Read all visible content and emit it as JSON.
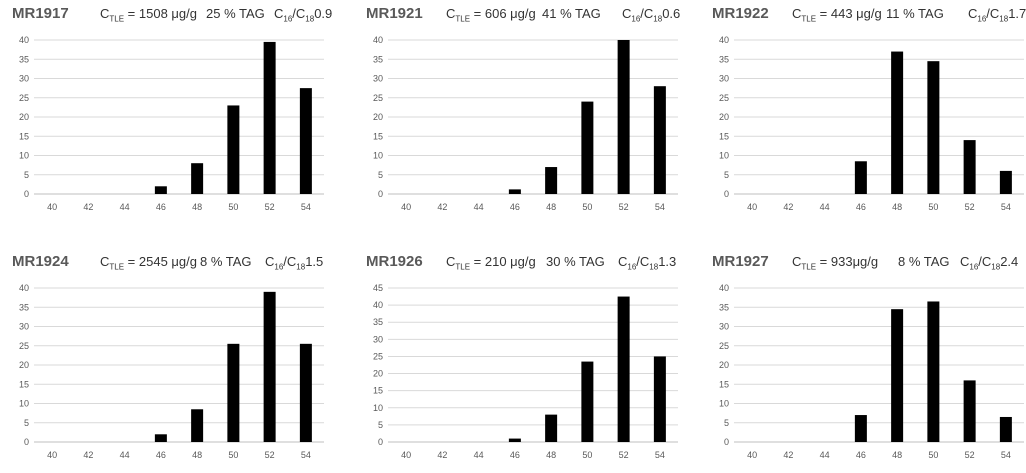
{
  "chart_data": [
    {
      "type": "bar",
      "title": {
        "sample": "MR1917",
        "ctle_prefix": "C",
        "ctle_sub": "TLE",
        "ctle_value": " = 1508 μg/g",
        "tag": "25 % TAG",
        "ratio_c1": "C",
        "ratio_s1": "16",
        "ratio_c2": "/C",
        "ratio_s2": "18",
        "ratio_value": "0.9"
      },
      "categories": [
        "40",
        "42",
        "44",
        "46",
        "48",
        "50",
        "52",
        "54"
      ],
      "values": [
        0,
        0,
        0,
        2,
        8,
        23,
        39.5,
        27.5
      ],
      "ylim": [
        0,
        40
      ],
      "yticks": [
        0,
        5,
        10,
        15,
        20,
        25,
        30,
        35,
        40
      ],
      "grid": true
    },
    {
      "type": "bar",
      "title": {
        "sample": "MR1921",
        "ctle_prefix": "C",
        "ctle_sub": "TLE",
        "ctle_value": " = 606 μg/g",
        "tag": "41 % TAG",
        "ratio_c1": "C",
        "ratio_s1": "16",
        "ratio_c2": "/C",
        "ratio_s2": "18",
        "ratio_value": "0.6"
      },
      "categories": [
        "40",
        "42",
        "44",
        "46",
        "48",
        "50",
        "52",
        "54"
      ],
      "values": [
        0,
        0,
        0,
        1.2,
        7,
        24,
        40,
        28
      ],
      "ylim": [
        0,
        40
      ],
      "yticks": [
        0,
        5,
        10,
        15,
        20,
        25,
        30,
        35,
        40
      ],
      "grid": true
    },
    {
      "type": "bar",
      "title": {
        "sample": "MR1922",
        "ctle_prefix": "C",
        "ctle_sub": "TLE",
        "ctle_value": " = 443 μg/g",
        "tag": "11 % TAG",
        "ratio_c1": "C",
        "ratio_s1": "16",
        "ratio_c2": "/C",
        "ratio_s2": "18",
        "ratio_value": "1.7"
      },
      "categories": [
        "40",
        "42",
        "44",
        "46",
        "48",
        "50",
        "52",
        "54"
      ],
      "values": [
        0,
        0,
        0,
        8.5,
        37,
        34.5,
        14,
        6
      ],
      "ylim": [
        0,
        40
      ],
      "yticks": [
        0,
        5,
        10,
        15,
        20,
        25,
        30,
        35,
        40
      ],
      "grid": true
    },
    {
      "type": "bar",
      "title": {
        "sample": "MR1924",
        "ctle_prefix": "C",
        "ctle_sub": "TLE",
        "ctle_value": " = 2545 μg/g",
        "tag": "8 % TAG",
        "ratio_c1": "C",
        "ratio_s1": "16",
        "ratio_c2": "/C",
        "ratio_s2": "18",
        "ratio_value": "1.5"
      },
      "categories": [
        "40",
        "42",
        "44",
        "46",
        "48",
        "50",
        "52",
        "54"
      ],
      "values": [
        0,
        0,
        0,
        2,
        8.5,
        25.5,
        39,
        25.5
      ],
      "ylim": [
        0,
        40
      ],
      "yticks": [
        0,
        5,
        10,
        15,
        20,
        25,
        30,
        35,
        40
      ],
      "grid": true
    },
    {
      "type": "bar",
      "title": {
        "sample": "MR1926",
        "ctle_prefix": "C",
        "ctle_sub": "TLE",
        "ctle_value": " = 210 μg/g",
        "tag": "30 % TAG",
        "ratio_c1": "C",
        "ratio_s1": "16",
        "ratio_c2": "/C",
        "ratio_s2": "18",
        "ratio_value": "1.3"
      },
      "categories": [
        "40",
        "42",
        "44",
        "46",
        "48",
        "50",
        "52",
        "54"
      ],
      "values": [
        0,
        0,
        0,
        1,
        8,
        23.5,
        42.5,
        25
      ],
      "ylim": [
        0,
        45
      ],
      "yticks": [
        0,
        5,
        10,
        15,
        20,
        25,
        30,
        35,
        40,
        45
      ],
      "grid": true
    },
    {
      "type": "bar",
      "title": {
        "sample": "MR1927",
        "ctle_prefix": "C",
        "ctle_sub": "TLE",
        "ctle_value": " = 933μg/g",
        "tag": "8 % TAG",
        "ratio_c1": "C",
        "ratio_s1": "16",
        "ratio_c2": "/C",
        "ratio_s2": "18",
        "ratio_value": "2.4"
      },
      "categories": [
        "40",
        "42",
        "44",
        "46",
        "48",
        "50",
        "52",
        "54"
      ],
      "values": [
        0,
        0,
        0,
        7,
        34.5,
        36.5,
        16,
        6.5
      ],
      "ylim": [
        0,
        40
      ],
      "yticks": [
        0,
        5,
        10,
        15,
        20,
        25,
        30,
        35,
        40
      ],
      "grid": true
    }
  ]
}
